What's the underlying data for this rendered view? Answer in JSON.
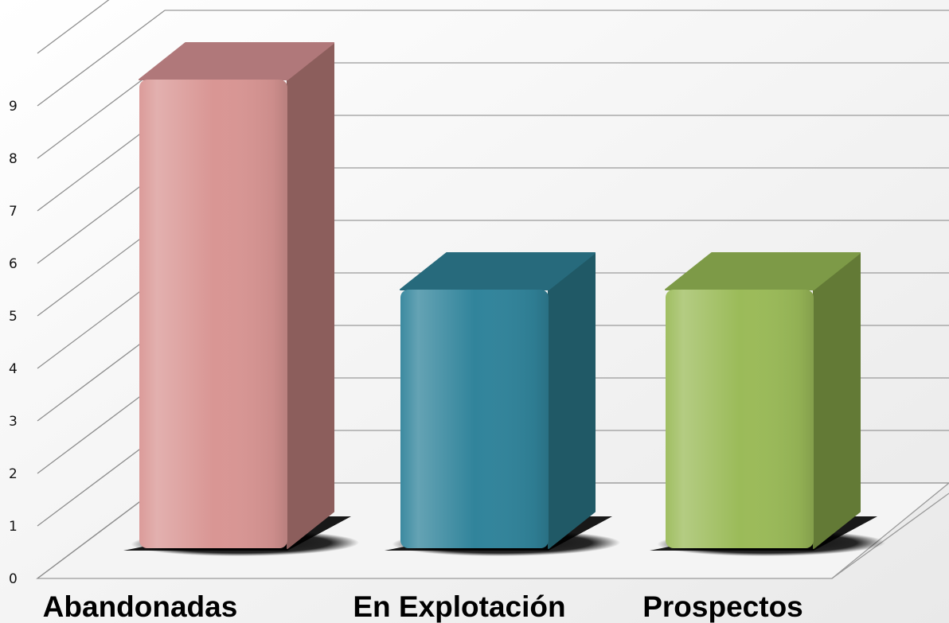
{
  "chart_data": {
    "type": "bar",
    "categories": [
      "Abandonadas",
      "En Explotación",
      "Prospectos"
    ],
    "values": [
      9,
      5,
      5
    ],
    "title": "",
    "xlabel": "",
    "ylabel": "",
    "ylim": [
      0,
      10
    ],
    "yticks": [
      "0",
      "1",
      "2",
      "3",
      "4",
      "5",
      "6",
      "7",
      "8",
      "9"
    ],
    "grid": true,
    "style": "3d-column",
    "colors": [
      {
        "front": "#D99694",
        "side": "#8C5E5C",
        "top": "#B0787A"
      },
      {
        "front": "#31849B",
        "side": "#205966",
        "top": "#276A7C"
      },
      {
        "front": "#9BBB59",
        "side": "#637A36",
        "top": "#7D9A47"
      }
    ]
  }
}
